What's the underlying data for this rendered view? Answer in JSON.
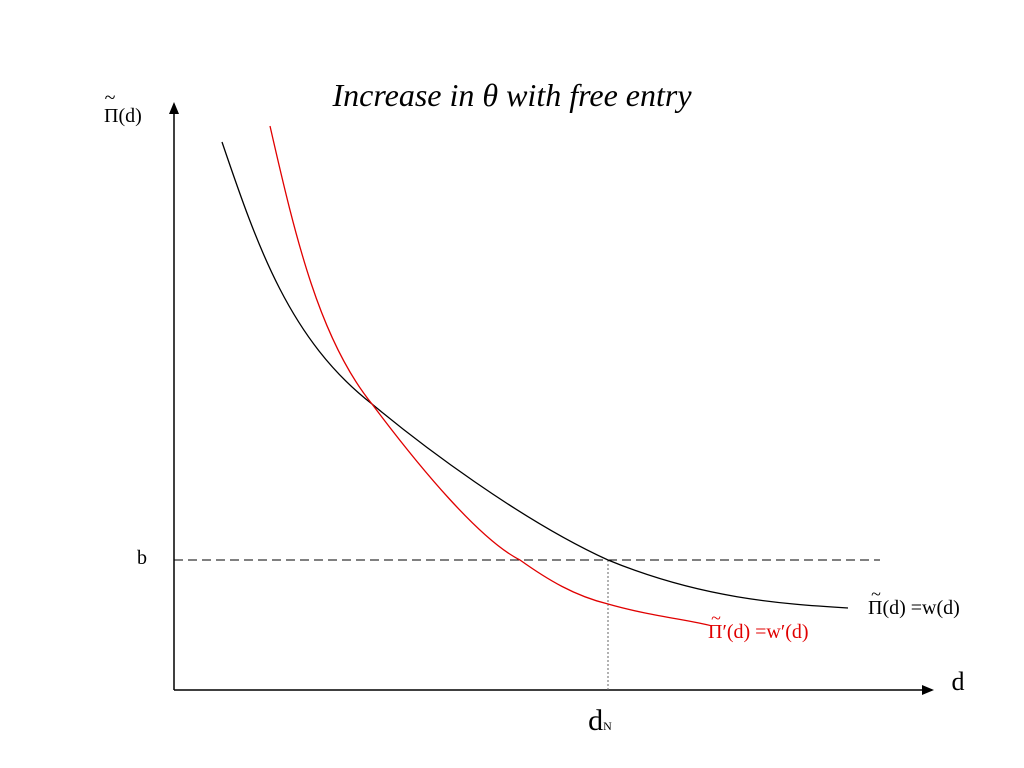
{
  "title": "Increase in θ with free entry",
  "y_axis_label": {
    "tilde": "~",
    "symbol": "Π",
    "arg": "(d)"
  },
  "x_axis_label": "d",
  "b_label": "b",
  "dn_label": {
    "main": "d",
    "sub": "N"
  },
  "curve_black_label": {
    "tilde": "~",
    "symbol": "Π",
    "rest": "(d) =w(d)"
  },
  "curve_red_label": {
    "tilde": "~",
    "symbol": "Π",
    "rest": "′(d) =w′(d)"
  },
  "colors": {
    "axis": "#000000",
    "curve_original": "#000000",
    "curve_shifted": "#e00000",
    "guide": "#666666"
  }
}
